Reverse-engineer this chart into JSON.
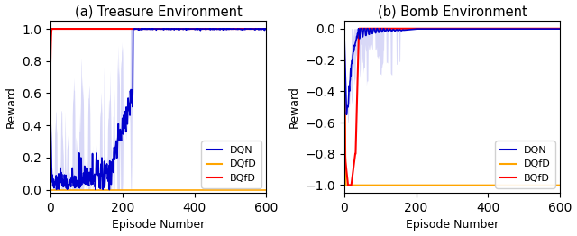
{
  "title_left": "(a) Treasure Environment",
  "title_right": "(b) Bomb Environment",
  "xlabel": "Episode Number",
  "ylabel": "Reward",
  "legend_labels": [
    "DQN",
    "DQfD",
    "BQfD"
  ],
  "legend_colors": [
    "#0000cc",
    "#ffa500",
    "#ff0000"
  ],
  "xlim": [
    0,
    600
  ],
  "ylim_left": [
    -0.02,
    1.05
  ],
  "ylim_right": [
    -1.05,
    0.05
  ],
  "yticks_left": [
    0.0,
    0.2,
    0.4,
    0.6,
    0.8,
    1.0
  ],
  "yticks_right": [
    -1.0,
    -0.8,
    -0.6,
    -0.4,
    -0.2,
    0.0
  ],
  "xticks": [
    0,
    200,
    400,
    600
  ],
  "figsize": [
    6.4,
    2.62
  ],
  "dpi": 100,
  "band_color": "#aaaaee",
  "band_alpha": 0.45
}
